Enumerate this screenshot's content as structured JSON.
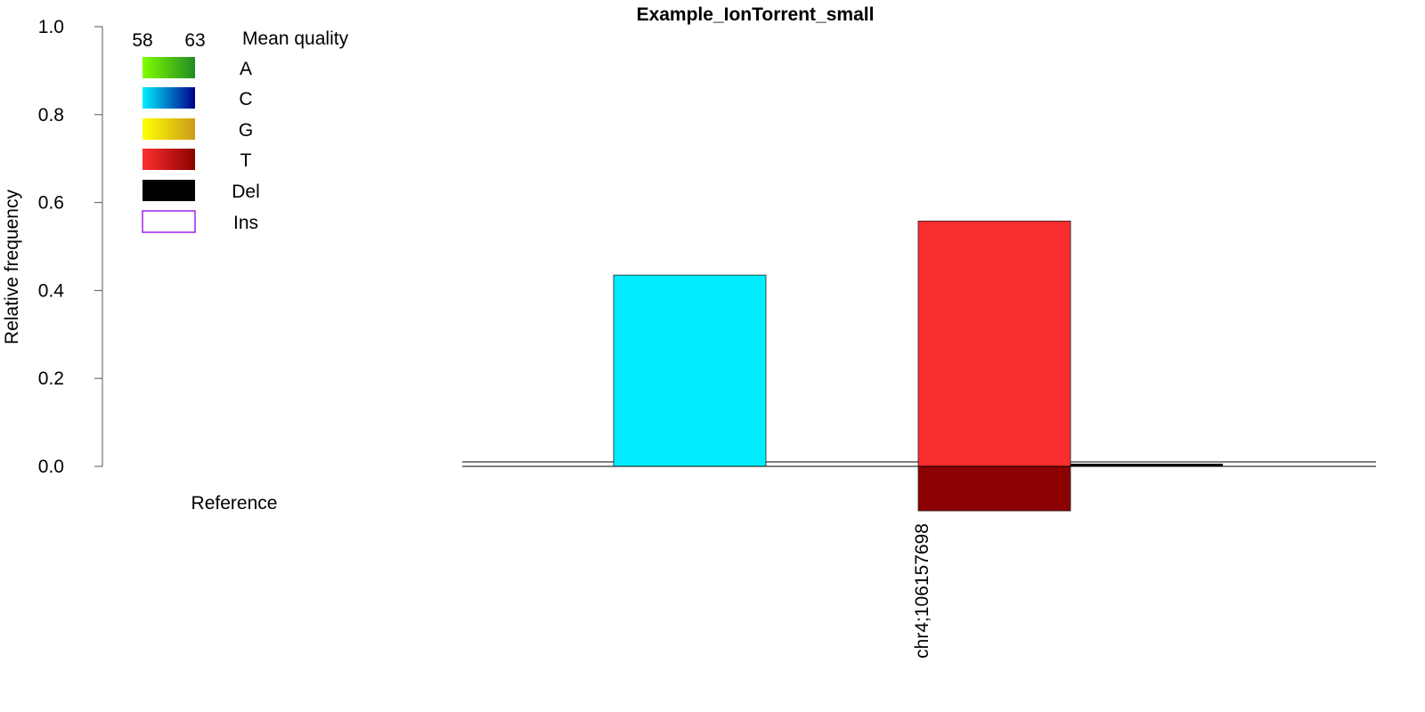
{
  "chart_data": {
    "type": "bar",
    "title": "Example_IonTorrent_small",
    "ylabel": "Relative frequency",
    "xlabel": "",
    "ylim": [
      0,
      1
    ],
    "yticks": [
      "0.0",
      "0.2",
      "0.4",
      "0.6",
      "0.8",
      "1.0"
    ],
    "ytick_values": [
      0,
      0.2,
      0.4,
      0.6,
      0.8,
      1.0
    ],
    "grid": false,
    "reference_label": "Reference",
    "position_label": "chr4;106157698",
    "legend": {
      "placement": "top-left",
      "quality_title": "Mean quality",
      "quality_min": "58",
      "quality_max": "63",
      "entries": [
        {
          "label": "A",
          "color_low": "#7fff00",
          "color_high": "#228b22"
        },
        {
          "label": "C",
          "color_low": "#00eeff",
          "color_high": "#00008b"
        },
        {
          "label": "G",
          "color_low": "#ffff00",
          "color_high": "#cd9b1d"
        },
        {
          "label": "T",
          "color_low": "#ff3030",
          "color_high": "#8b0000"
        },
        {
          "label": "Del",
          "color_low": "#000000",
          "color_high": "#000000"
        },
        {
          "label": "Ins",
          "color_low": "#ffffff",
          "color_high": "#ffffff",
          "outline": "#a020f0"
        }
      ]
    },
    "series": [
      {
        "base": "C",
        "value": 0.435,
        "color": "#00eeff"
      },
      {
        "base": "T",
        "value": 0.558,
        "color": "#fa2e2e"
      },
      {
        "base": "Del",
        "value": 0.006,
        "color": "#000000"
      }
    ],
    "reference": {
      "base": "T",
      "value": 0.1,
      "color": "#8b0000"
    }
  }
}
